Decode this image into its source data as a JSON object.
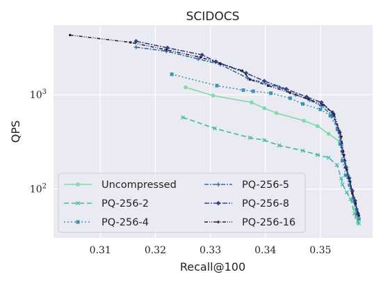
{
  "chart_data": {
    "type": "line",
    "title": "SCIDOCS",
    "xlabel": "Recall@100",
    "ylabel": "QPS",
    "xlim": [
      0.3015,
      0.3595
    ],
    "ylim_log10": [
      1.48,
      3.74
    ],
    "yscale": "log",
    "grid": true,
    "legend": "lower-left",
    "x_ticks": [
      {
        "value": 0.31,
        "label": "0.31"
      },
      {
        "value": 0.32,
        "label": "0.32"
      },
      {
        "value": 0.33,
        "label": "0.33"
      },
      {
        "value": 0.34,
        "label": "0.34"
      },
      {
        "value": 0.35,
        "label": "0.35"
      }
    ],
    "y_ticks": [
      {
        "value": 100,
        "base": "10",
        "exp": "2"
      },
      {
        "value": 1000,
        "base": "10",
        "exp": "3"
      }
    ],
    "series": [
      {
        "name": "Uncompressed",
        "color": "#7fd9a8",
        "dash": "",
        "marker": "circle",
        "points": [
          [
            0.3255,
            1200
          ],
          [
            0.3305,
            980
          ],
          [
            0.3375,
            830
          ],
          [
            0.3398,
            720
          ],
          [
            0.342,
            640
          ],
          [
            0.347,
            530
          ],
          [
            0.3495,
            465
          ],
          [
            0.3515,
            385
          ],
          [
            0.3535,
            320
          ],
          [
            0.3548,
            170
          ],
          [
            0.3553,
            130
          ],
          [
            0.356,
            75
          ],
          [
            0.3565,
            50
          ],
          [
            0.3568,
            44
          ]
        ]
      },
      {
        "name": "PQ-256-2",
        "color": "#42b7aa",
        "dash": "7,4",
        "marker": "x",
        "points": [
          [
            0.325,
            575
          ],
          [
            0.3308,
            440
          ],
          [
            0.3372,
            350
          ],
          [
            0.3398,
            330
          ],
          [
            0.3425,
            290
          ],
          [
            0.3468,
            255
          ],
          [
            0.3495,
            230
          ],
          [
            0.3515,
            215
          ],
          [
            0.353,
            180
          ],
          [
            0.3538,
            130
          ],
          [
            0.354,
            112
          ],
          [
            0.3548,
            92
          ],
          [
            0.3555,
            78
          ],
          [
            0.3562,
            55
          ],
          [
            0.357,
            43
          ]
        ]
      },
      {
        "name": "PQ-256-4",
        "color": "#3a93b0",
        "dash": "2,3",
        "marker": "square",
        "points": [
          [
            0.323,
            1650
          ],
          [
            0.3312,
            1250
          ],
          [
            0.336,
            1120
          ],
          [
            0.3378,
            1090
          ],
          [
            0.341,
            1040
          ],
          [
            0.3445,
            920
          ],
          [
            0.3468,
            800
          ],
          [
            0.35,
            700
          ],
          [
            0.3518,
            600
          ],
          [
            0.3531,
            430
          ],
          [
            0.3536,
            300
          ],
          [
            0.354,
            200
          ],
          [
            0.3546,
            140
          ],
          [
            0.3553,
            110
          ],
          [
            0.356,
            80
          ],
          [
            0.3566,
            60
          ],
          [
            0.357,
            48
          ]
        ]
      },
      {
        "name": "PQ-256-5",
        "color": "#2d6aa0",
        "dash": "6,2,2,2",
        "marker": "plus",
        "points": [
          [
            0.3165,
            3200
          ],
          [
            0.322,
            2900
          ],
          [
            0.3278,
            2400
          ],
          [
            0.3318,
            2100
          ],
          [
            0.3368,
            1500
          ],
          [
            0.3425,
            1200
          ],
          [
            0.3455,
            1000
          ],
          [
            0.348,
            880
          ],
          [
            0.3502,
            760
          ],
          [
            0.3522,
            600
          ],
          [
            0.3533,
            420
          ],
          [
            0.3538,
            300
          ],
          [
            0.3544,
            200
          ],
          [
            0.355,
            140
          ],
          [
            0.3556,
            100
          ],
          [
            0.3562,
            72
          ],
          [
            0.3568,
            53
          ]
        ]
      },
      {
        "name": "PQ-256-8",
        "color": "#3a3f86",
        "dash": "7,2,2,2",
        "marker": "diamond",
        "points": [
          [
            0.3165,
            3700
          ],
          [
            0.3222,
            3150
          ],
          [
            0.3285,
            2650
          ],
          [
            0.331,
            2250
          ],
          [
            0.3365,
            1700
          ],
          [
            0.3398,
            1400
          ],
          [
            0.3438,
            1150
          ],
          [
            0.3475,
            950
          ],
          [
            0.3502,
            830
          ],
          [
            0.3522,
            650
          ],
          [
            0.3535,
            400
          ],
          [
            0.354,
            250
          ],
          [
            0.3546,
            170
          ],
          [
            0.3552,
            130
          ],
          [
            0.3558,
            95
          ],
          [
            0.3563,
            75
          ],
          [
            0.3568,
            55
          ]
        ]
      },
      {
        "name": "PQ-256-16",
        "color": "#24203d",
        "dash": "5,2,1,2,1,2",
        "marker": "dot",
        "points": [
          [
            0.3045,
            4300
          ],
          [
            0.3155,
            3600
          ],
          [
            0.322,
            3000
          ],
          [
            0.3282,
            2500
          ],
          [
            0.3318,
            2150
          ],
          [
            0.3358,
            1800
          ],
          [
            0.3372,
            1450
          ],
          [
            0.3405,
            1250
          ],
          [
            0.3445,
            1050
          ],
          [
            0.3478,
            900
          ],
          [
            0.3505,
            780
          ],
          [
            0.3525,
            620
          ],
          [
            0.3538,
            360
          ],
          [
            0.3543,
            230
          ],
          [
            0.3548,
            160
          ],
          [
            0.3554,
            120
          ],
          [
            0.3558,
            90
          ],
          [
            0.3564,
            70
          ],
          [
            0.357,
            52
          ]
        ]
      }
    ]
  }
}
